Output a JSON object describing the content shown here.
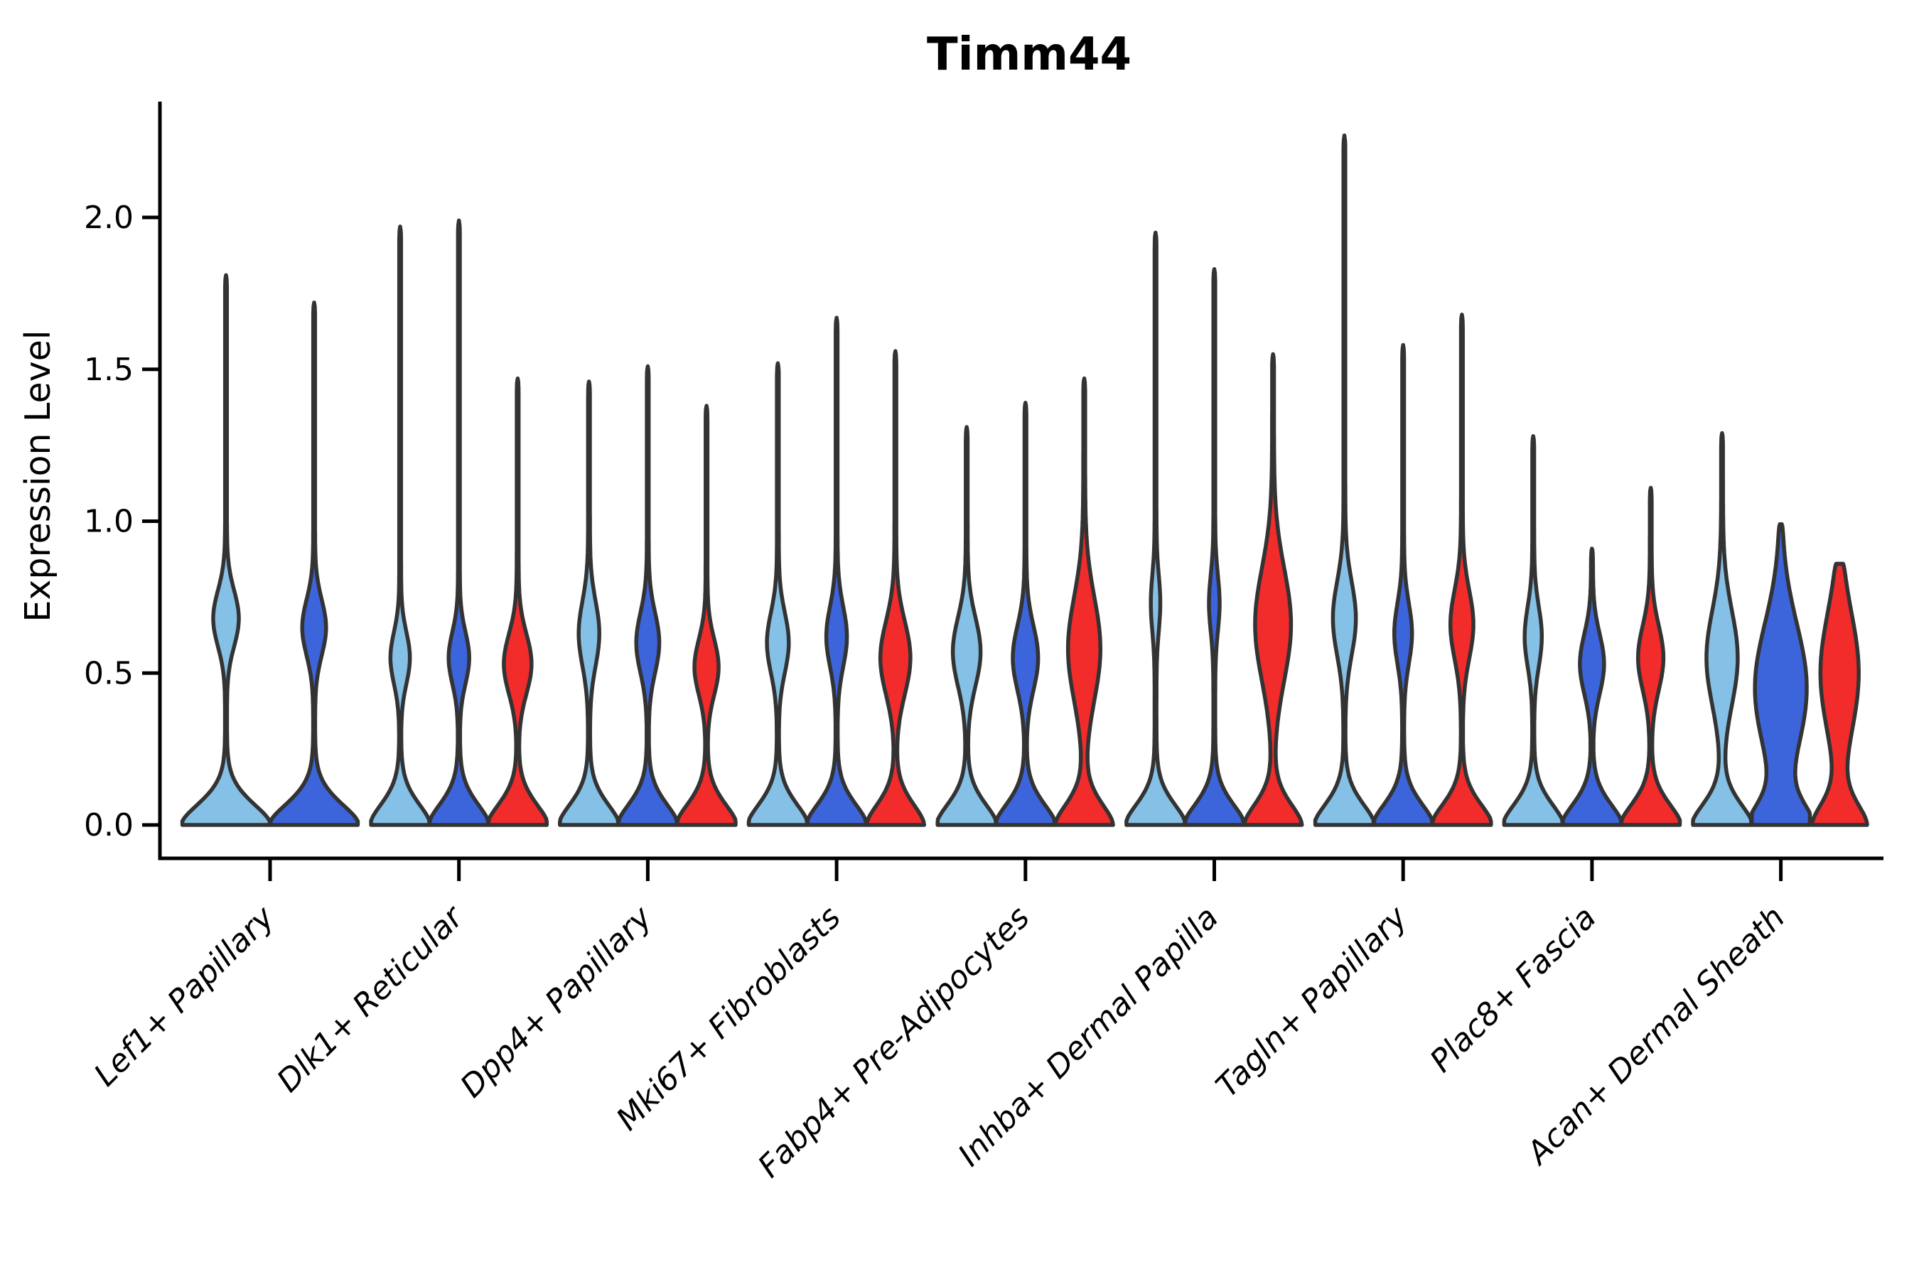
{
  "chart_data": {
    "type": "violin",
    "title": "Timm44",
    "xlabel": "",
    "ylabel": "Expression Level",
    "ylim": [
      0.0,
      2.38
    ],
    "yticks": [
      0.0,
      0.5,
      1.0,
      1.5,
      2.0
    ],
    "ytick_labels": [
      "0.0",
      "0.5",
      "1.0",
      "1.5",
      "2.0"
    ],
    "grid": false,
    "legend": "none",
    "series": [
      "skyblue",
      "royalblue",
      "red"
    ],
    "categories": [
      "Lef1+ Papillary",
      "Dlk1+ Reticular",
      "Dpp4+ Papillary",
      "Mki67+ Fibroblasts",
      "Fabp4+ Pre-Adipocytes",
      "Inhba+ Dermal Papilla",
      "Tagln+ Papillary",
      "Plac8+ Fascia",
      "Acan+ Dermal Sheath"
    ],
    "groups": [
      {
        "category": "Lef1+ Papillary",
        "violins": [
          {
            "series": "skyblue",
            "max": 1.81,
            "bulge_center": 0.68,
            "bulge_sigma": 0.13,
            "bulge_halfwidth": 0.27,
            "base_halfwidth": 1.0
          },
          {
            "series": "royalblue",
            "max": 1.72,
            "bulge_center": 0.65,
            "bulge_sigma": 0.13,
            "bulge_halfwidth": 0.25,
            "base_halfwidth": 1.0
          }
        ]
      },
      {
        "category": "Dlk1+ Reticular",
        "violins": [
          {
            "series": "skyblue",
            "max": 1.97,
            "bulge_center": 0.55,
            "bulge_sigma": 0.12,
            "bulge_halfwidth": 0.3,
            "base_halfwidth": 1.0
          },
          {
            "series": "royalblue",
            "max": 1.99,
            "bulge_center": 0.55,
            "bulge_sigma": 0.12,
            "bulge_halfwidth": 0.32,
            "base_halfwidth": 1.0
          },
          {
            "series": "red",
            "max": 1.47,
            "bulge_center": 0.53,
            "bulge_sigma": 0.14,
            "bulge_halfwidth": 0.44,
            "base_halfwidth": 1.0
          }
        ]
      },
      {
        "category": "Dpp4+ Papillary",
        "violins": [
          {
            "series": "skyblue",
            "max": 1.46,
            "bulge_center": 0.63,
            "bulge_sigma": 0.15,
            "bulge_halfwidth": 0.32,
            "base_halfwidth": 1.0
          },
          {
            "series": "royalblue",
            "max": 1.51,
            "bulge_center": 0.6,
            "bulge_sigma": 0.14,
            "bulge_halfwidth": 0.36,
            "base_halfwidth": 1.0
          },
          {
            "series": "red",
            "max": 1.38,
            "bulge_center": 0.52,
            "bulge_sigma": 0.13,
            "bulge_halfwidth": 0.38,
            "base_halfwidth": 1.0
          }
        ]
      },
      {
        "category": "Mki67+ Fibroblasts",
        "violins": [
          {
            "series": "skyblue",
            "max": 1.52,
            "bulge_center": 0.6,
            "bulge_sigma": 0.14,
            "bulge_halfwidth": 0.34,
            "base_halfwidth": 1.0
          },
          {
            "series": "royalblue",
            "max": 1.67,
            "bulge_center": 0.62,
            "bulge_sigma": 0.14,
            "bulge_halfwidth": 0.32,
            "base_halfwidth": 1.0
          },
          {
            "series": "red",
            "max": 1.56,
            "bulge_center": 0.55,
            "bulge_sigma": 0.17,
            "bulge_halfwidth": 0.48,
            "base_halfwidth": 0.95
          }
        ]
      },
      {
        "category": "Fabp4+ Pre-Adipocytes",
        "violins": [
          {
            "series": "skyblue",
            "max": 1.31,
            "bulge_center": 0.57,
            "bulge_sigma": 0.16,
            "bulge_halfwidth": 0.44,
            "base_halfwidth": 1.0
          },
          {
            "series": "royalblue",
            "max": 1.39,
            "bulge_center": 0.55,
            "bulge_sigma": 0.15,
            "bulge_halfwidth": 0.4,
            "base_halfwidth": 1.0
          },
          {
            "series": "red",
            "max": 1.47,
            "bulge_center": 0.58,
            "bulge_sigma": 0.24,
            "bulge_halfwidth": 0.52,
            "base_halfwidth": 0.95
          }
        ]
      },
      {
        "category": "Inhba+ Dermal Papilla",
        "violins": [
          {
            "series": "skyblue",
            "max": 1.95,
            "bulge_center": 0.73,
            "bulge_sigma": 0.13,
            "bulge_halfwidth": 0.13,
            "base_halfwidth": 1.0
          },
          {
            "series": "royalblue",
            "max": 1.83,
            "bulge_center": 0.73,
            "bulge_sigma": 0.13,
            "bulge_halfwidth": 0.15,
            "base_halfwidth": 1.0
          },
          {
            "series": "red",
            "max": 1.55,
            "bulge_center": 0.66,
            "bulge_sigma": 0.26,
            "bulge_halfwidth": 0.58,
            "base_halfwidth": 0.95
          }
        ]
      },
      {
        "category": "Tagln+ Papillary",
        "violins": [
          {
            "series": "skyblue",
            "max": 2.27,
            "bulge_center": 0.68,
            "bulge_sigma": 0.17,
            "bulge_halfwidth": 0.36,
            "base_halfwidth": 1.0
          },
          {
            "series": "royalblue",
            "max": 1.58,
            "bulge_center": 0.63,
            "bulge_sigma": 0.14,
            "bulge_halfwidth": 0.27,
            "base_halfwidth": 1.0
          },
          {
            "series": "red",
            "max": 1.68,
            "bulge_center": 0.66,
            "bulge_sigma": 0.16,
            "bulge_halfwidth": 0.36,
            "base_halfwidth": 1.0
          }
        ]
      },
      {
        "category": "Plac8+ Fascia",
        "violins": [
          {
            "series": "skyblue",
            "max": 1.28,
            "bulge_center": 0.62,
            "bulge_sigma": 0.14,
            "bulge_halfwidth": 0.26,
            "base_halfwidth": 1.0
          },
          {
            "series": "royalblue",
            "max": 0.91,
            "bulge_center": 0.53,
            "bulge_sigma": 0.14,
            "bulge_halfwidth": 0.38,
            "base_halfwidth": 1.0
          },
          {
            "series": "red",
            "max": 1.11,
            "bulge_center": 0.55,
            "bulge_sigma": 0.15,
            "bulge_halfwidth": 0.4,
            "base_halfwidth": 1.0
          }
        ]
      },
      {
        "category": "Acan+ Dermal Sheath",
        "violins": [
          {
            "series": "skyblue",
            "max": 1.29,
            "bulge_center": 0.55,
            "bulge_sigma": 0.22,
            "bulge_halfwidth": 0.5,
            "base_halfwidth": 1.0
          },
          {
            "series": "royalblue",
            "max": 0.99,
            "bulge_center": 0.45,
            "bulge_sigma": 0.3,
            "bulge_halfwidth": 0.85,
            "base_halfwidth": 1.0
          },
          {
            "series": "red",
            "max": 0.86,
            "bulge_center": 0.5,
            "bulge_sigma": 0.28,
            "bulge_halfwidth": 0.62,
            "base_halfwidth": 0.88
          }
        ]
      }
    ]
  },
  "colors": {
    "skyblue": "#85C1E6",
    "royalblue": "#3C64DB",
    "red": "#F22B2B",
    "outline": "#333333",
    "axis": "#000000",
    "background": "#ffffff"
  }
}
